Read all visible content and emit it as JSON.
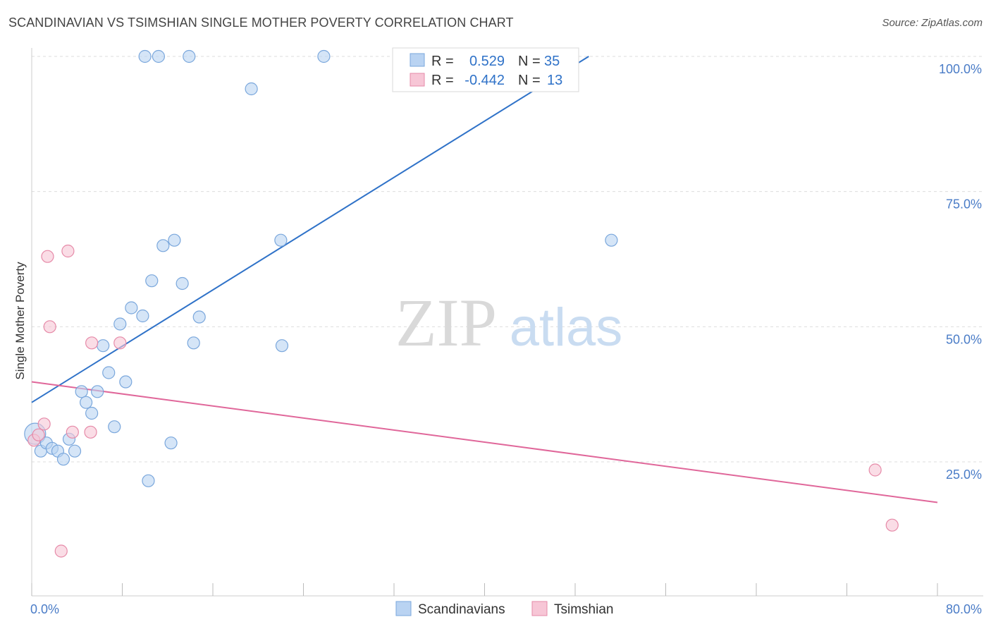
{
  "title": "SCANDINAVIAN VS TSIMSHIAN SINGLE MOTHER POVERTY CORRELATION CHART",
  "source": "Source: ZipAtlas.com",
  "watermark": {
    "zip": "ZIP",
    "atlas": "atlas"
  },
  "colors": {
    "blue_fill": "#b9d3f2",
    "blue_stroke": "#7aa7dc",
    "blue_line": "#2f72c8",
    "pink_fill": "#f7c6d6",
    "pink_stroke": "#e68aa8",
    "pink_line": "#e0679a",
    "tick_text": "#4a7cc7",
    "grid": "#dddddd"
  },
  "legend": {
    "r_label": "R =",
    "n_label": "N =",
    "rows": [
      {
        "name": "Scandinavians",
        "r": "0.529",
        "n": "35"
      },
      {
        "name": "Tsimshian",
        "r": "-0.442",
        "n": "13"
      }
    ]
  },
  "chart_data": {
    "type": "scatter",
    "title": "SCANDINAVIAN VS TSIMSHIAN SINGLE MOTHER POVERTY CORRELATION CHART",
    "xlabel": "",
    "ylabel": "Single Mother Poverty",
    "xlim": [
      0,
      80
    ],
    "ylim": [
      0,
      105
    ],
    "x_tick_labels": [
      "0.0%",
      "80.0%"
    ],
    "y_ticks": [
      25,
      50,
      75,
      100
    ],
    "y_tick_labels": [
      "25.0%",
      "50.0%",
      "75.0%",
      "100.0%"
    ],
    "legend_position": "bottom",
    "series": [
      {
        "name": "Scandinavians",
        "color": "blue",
        "points": [
          [
            0.3,
            30.2
          ],
          [
            0.8,
            27.0
          ],
          [
            1.3,
            28.5
          ],
          [
            1.8,
            27.5
          ],
          [
            2.3,
            27.0
          ],
          [
            2.8,
            25.5
          ],
          [
            3.3,
            29.2
          ],
          [
            3.8,
            27.0
          ],
          [
            4.4,
            38.0
          ],
          [
            4.8,
            36.0
          ],
          [
            5.3,
            34.0
          ],
          [
            5.8,
            38.0
          ],
          [
            6.3,
            46.5
          ],
          [
            6.8,
            41.5
          ],
          [
            7.3,
            31.5
          ],
          [
            7.8,
            50.5
          ],
          [
            8.3,
            39.8
          ],
          [
            8.8,
            53.5
          ],
          [
            9.8,
            52.0
          ],
          [
            10.3,
            21.5
          ],
          [
            10.6,
            58.5
          ],
          [
            11.6,
            65.0
          ],
          [
            12.3,
            28.5
          ],
          [
            12.6,
            66.0
          ],
          [
            13.3,
            58.0
          ],
          [
            14.3,
            47.0
          ],
          [
            14.8,
            51.8
          ],
          [
            10.0,
            100.0
          ],
          [
            11.2,
            100.0
          ],
          [
            13.9,
            100.0
          ],
          [
            19.4,
            94.0
          ],
          [
            22.0,
            66.0
          ],
          [
            22.1,
            46.5
          ],
          [
            25.8,
            100.0
          ],
          [
            51.2,
            66.0
          ]
        ],
        "trend": {
          "x": [
            0,
            49.2
          ],
          "y": [
            36.0,
            100.0
          ]
        }
      },
      {
        "name": "Tsimshian",
        "color": "pink",
        "points": [
          [
            0.2,
            29.0
          ],
          [
            0.6,
            30.0
          ],
          [
            1.1,
            32.0
          ],
          [
            1.4,
            63.0
          ],
          [
            1.6,
            50.0
          ],
          [
            2.6,
            8.5
          ],
          [
            3.2,
            64.0
          ],
          [
            3.6,
            30.5
          ],
          [
            5.2,
            30.5
          ],
          [
            5.3,
            47.0
          ],
          [
            7.8,
            47.0
          ],
          [
            74.5,
            23.5
          ],
          [
            76.0,
            13.3
          ]
        ],
        "trend": {
          "x": [
            0,
            80
          ],
          "y": [
            39.8,
            17.5
          ]
        }
      }
    ]
  }
}
